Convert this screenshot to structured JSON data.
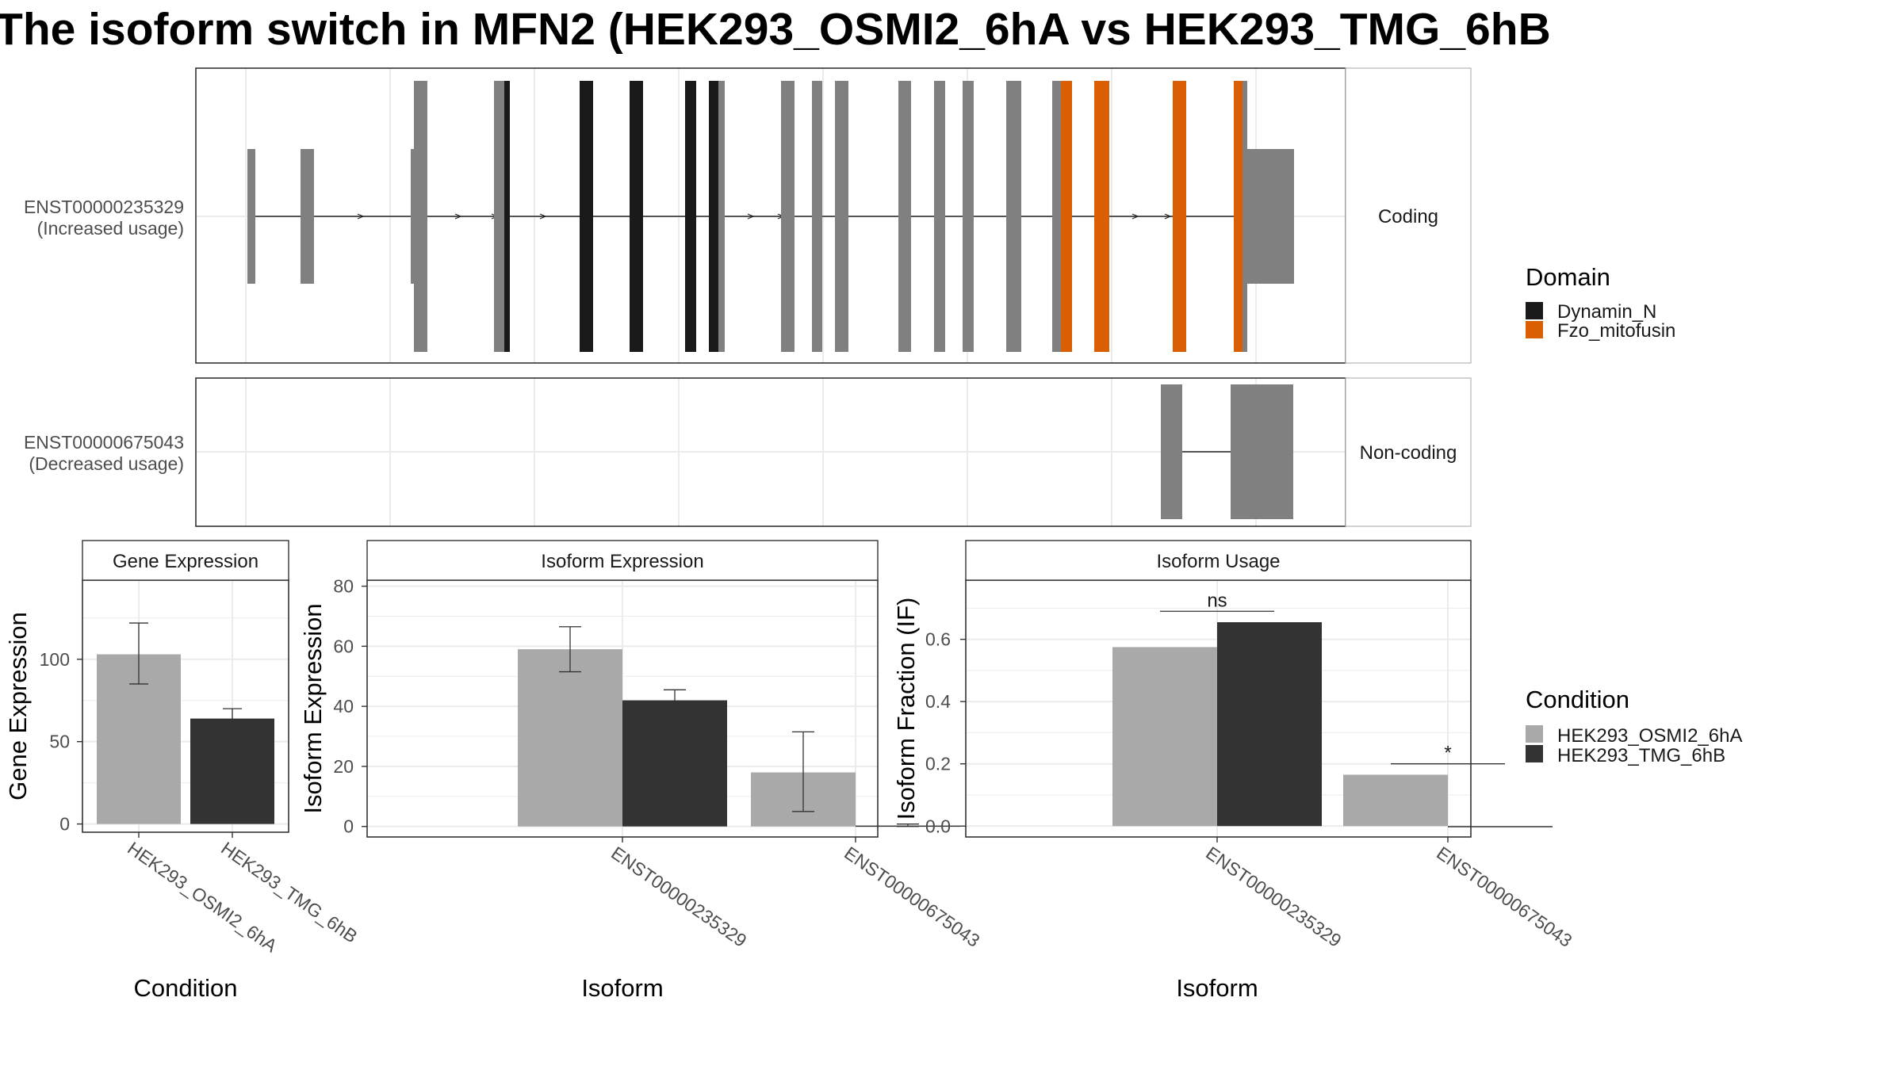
{
  "title": "The isoform switch in MFN2 (HEK293_OSMI2_6hA vs HEK293_TMG_6hB",
  "transcripts": [
    {
      "id": "ENST00000235329",
      "usage_label": "(Increased usage)",
      "strip": "Coding"
    },
    {
      "id": "ENST00000675043",
      "usage_label": "(Decreased usage)",
      "strip": "Non-coding"
    }
  ],
  "domain_legend": {
    "title": "Domain",
    "items": [
      {
        "label": "Dynamin_N",
        "color": "#1a1a1a"
      },
      {
        "label": "Fzo_mitofusin",
        "color": "#d95f02"
      }
    ]
  },
  "condition_legend": {
    "title": "Condition",
    "items": [
      {
        "label": "HEK293_OSMI2_6hA",
        "color": "#a9a9a9"
      },
      {
        "label": "HEK293_TMG_6hB",
        "color": "#333333"
      }
    ]
  },
  "colors": {
    "exon": "#808080",
    "panel_border": "#333333",
    "strip_border": "#b3b3b3",
    "grid": "#ebebeb"
  },
  "chart_data": [
    {
      "type": "bar",
      "strip": "Gene Expression",
      "xlabel": "Condition",
      "ylabel": "Gene Expression",
      "ylim": [
        -5,
        148
      ],
      "yticks": [
        0,
        50,
        100
      ],
      "categories": [
        "HEK293_OSMI2_6hA",
        "HEK293_TMG_6hB"
      ],
      "values": [
        103,
        64
      ],
      "error_low": [
        85,
        60
      ],
      "error_high": [
        122,
        70
      ]
    },
    {
      "type": "bar",
      "strip": "Isoform Expression",
      "xlabel": "Isoform",
      "ylabel": "Isoform Expression",
      "ylim": [
        -3.5,
        82
      ],
      "yticks": [
        0,
        20,
        40,
        60,
        80
      ],
      "categories": [
        "ENST00000235329",
        "ENST00000675043"
      ],
      "series": [
        {
          "name": "HEK293_OSMI2_6hA",
          "values": [
            59,
            18
          ],
          "error_low": [
            51.5,
            5
          ],
          "error_high": [
            66.5,
            31.5
          ]
        },
        {
          "name": "HEK293_TMG_6hB",
          "values": [
            42,
            0.3
          ],
          "error_low": [
            39.5,
            0
          ],
          "error_high": [
            45.5,
            0.8
          ]
        }
      ]
    },
    {
      "type": "bar",
      "strip": "Isoform Usage",
      "xlabel": "Isoform",
      "ylabel": "Isoform Fraction (IF)",
      "ylim": [
        -0.035,
        0.79
      ],
      "yticks": [
        "0.0",
        "0.2",
        "0.4",
        "0.6"
      ],
      "categories": [
        "ENST00000235329",
        "ENST00000675043"
      ],
      "series": [
        {
          "name": "HEK293_OSMI2_6hA",
          "values": [
            0.575,
            0.165
          ]
        },
        {
          "name": "HEK293_TMG_6hB",
          "values": [
            0.655,
            0.0
          ]
        }
      ],
      "annotations": [
        {
          "category": "ENST00000235329",
          "label": "ns",
          "y": 0.69
        },
        {
          "category": "ENST00000675043",
          "label": "*",
          "y": 0.2
        }
      ]
    }
  ]
}
